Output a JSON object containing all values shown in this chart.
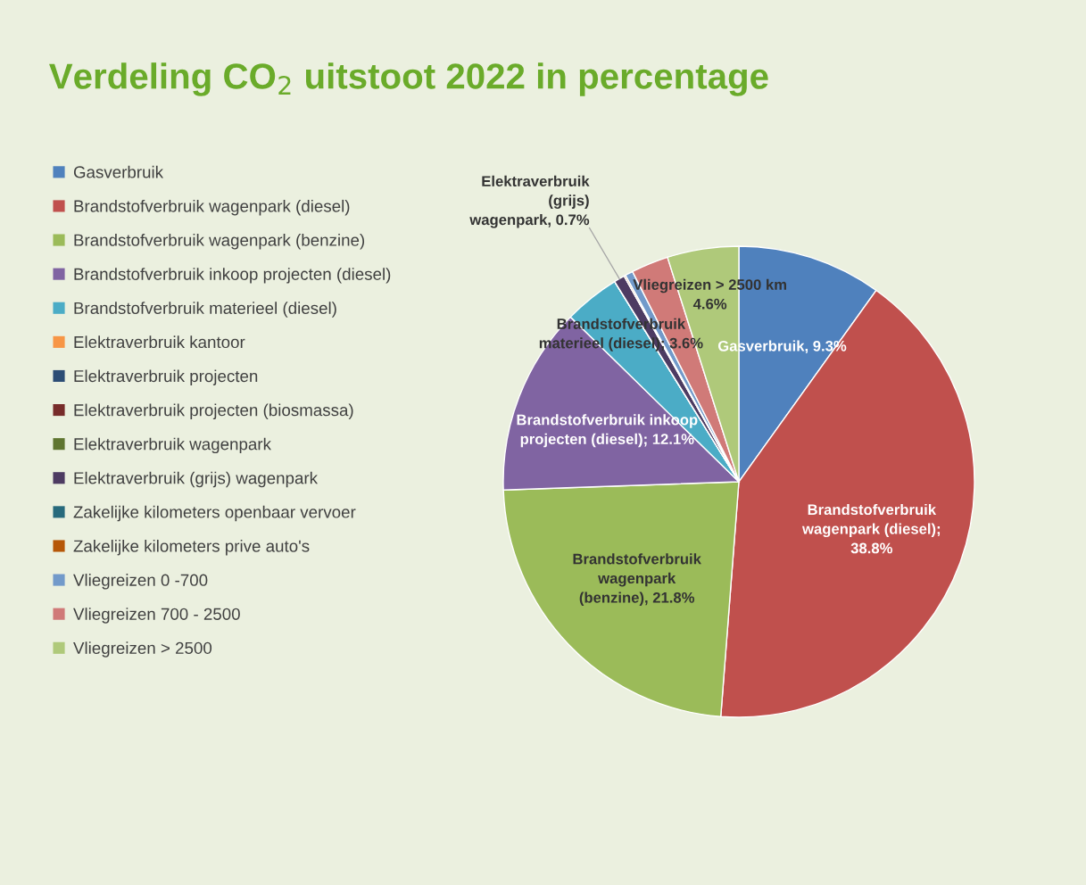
{
  "chart_data": {
    "type": "pie",
    "title": "Verdeling CO$_{2}$ uitstoot 2022 in percentage",
    "categories": [
      "Gasverbruik",
      "Brandstofverbruik wagenpark (diesel)",
      "Brandstofverbruik wagenpark (benzine)",
      "Brandstofverbruik inkoop projecten (diesel)",
      "Brandstofverbruik materieel (diesel)",
      "Elektraverbruik kantoor",
      "Elektraverbruik projecten",
      "Elektraverbruik projecten (biosmassa)",
      "Elektraverbruik wagenpark",
      "Elektraverbruik (grijs) wagenpark",
      "Zakelijke kilometers openbaar vervoer",
      "Zakelijke kilometers prive auto's",
      "Vliegreizen 0 -700",
      "Vliegreizen 700 - 2500",
      "Vliegreizen > 2500"
    ],
    "values": [
      9.3,
      38.8,
      21.8,
      12.1,
      3.6,
      0,
      0,
      0,
      0,
      0.7,
      0,
      0.1,
      0.5,
      2.4,
      4.6
    ],
    "colors": [
      "#4f81bd",
      "#c0504d",
      "#9bbb59",
      "#8064a2",
      "#4bacc6",
      "#f79646",
      "#2c4d75",
      "#772c2a",
      "#5f7530",
      "#4d3b62",
      "#276a7c",
      "#b65708",
      "#729aca",
      "#d07a78",
      "#afc97a"
    ],
    "value_labels": [
      "Gasverbruik, 9.3%",
      "Brandstofverbruik\nwagenpark (diesel);\n38.8%",
      "Brandstofverbruik\nwagenpark\n(benzine), 21.8%",
      "Brandstofverbruik inkoop\nprojecten (diesel); 12.1%",
      "Brandstofverbruik\nmaterieel (diesel); 3.6%",
      null,
      null,
      null,
      null,
      "Elektraverbruik\n(grijs)\nwagenpark, 0.7%",
      null,
      null,
      null,
      null,
      "Vliegreizen > 2500 km\n4.6%"
    ],
    "legend": "left"
  }
}
